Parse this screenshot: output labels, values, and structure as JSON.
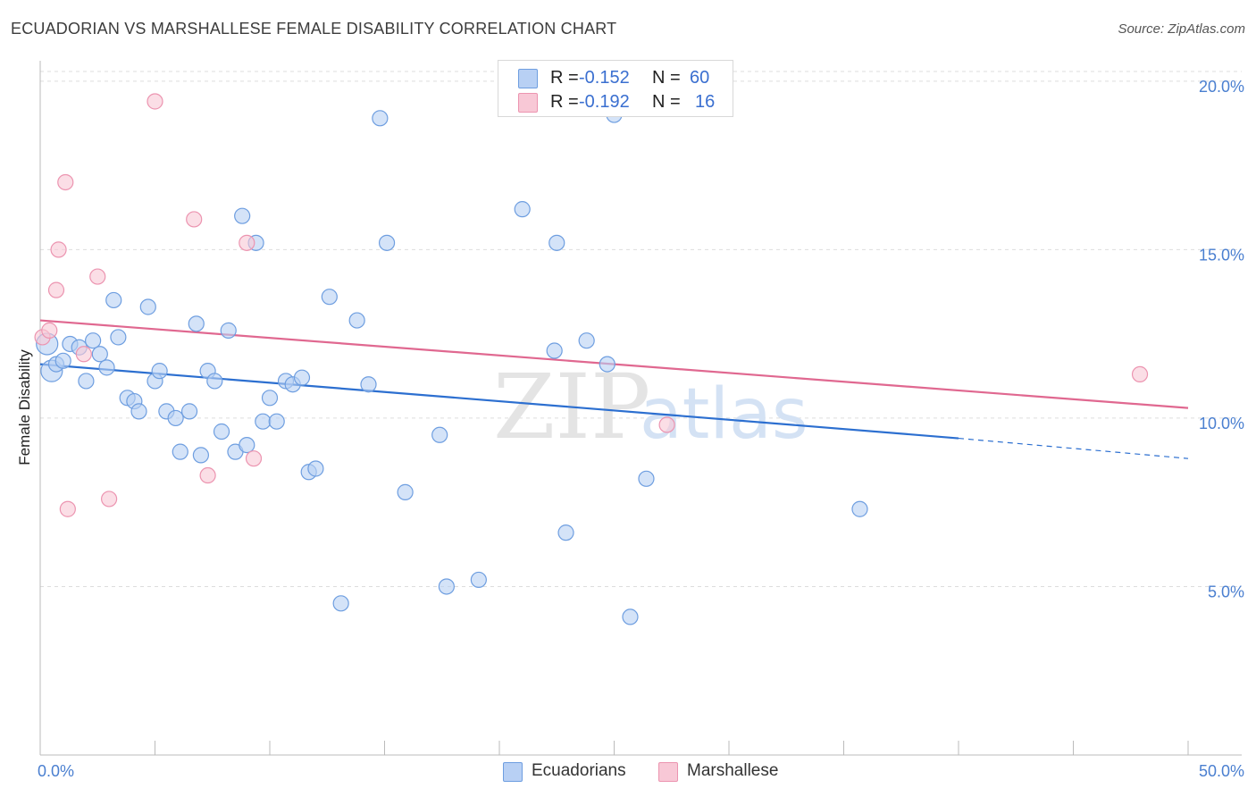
{
  "title": "ECUADORIAN VS MARSHALLESE FEMALE DISABILITY CORRELATION CHART",
  "source": "Source: ZipAtlas.com",
  "watermark": {
    "zip": "ZIP",
    "atlas": "atlas"
  },
  "colors": {
    "ecuadorian_fill": "#b8d0f4",
    "ecuadorian_stroke": "#6e9ee0",
    "ecuadorian_line": "#2c6fd0",
    "marshallese_fill": "#f8c8d6",
    "marshallese_stroke": "#ec94b0",
    "marshallese_line": "#e06890",
    "tick_text": "#4a7fd0",
    "grid": "#dddddd"
  },
  "legend": {
    "rows": [
      {
        "label": "R = ",
        "r": "-0.152",
        "n_label": "N = ",
        "n": "60"
      },
      {
        "label": "R = ",
        "r": "-0.192",
        "n_label": "N = ",
        "n": "16"
      }
    ]
  },
  "bottom_legend": [
    "Ecuadorians",
    "Marshallese"
  ],
  "chart_data": {
    "type": "scatter",
    "title": "ECUADORIAN VS MARSHALLESE FEMALE DISABILITY CORRELATION CHART",
    "xlabel": "",
    "ylabel": "Female Disability",
    "xlim": [
      0,
      50
    ],
    "ylim": [
      0,
      20.5
    ],
    "x_tick_labels": [
      {
        "value": 0,
        "label": "0.0%"
      },
      {
        "value": 50,
        "label": "50.0%"
      }
    ],
    "x_minor_ticks": [
      0,
      5,
      10,
      15,
      20,
      25,
      30,
      35,
      40,
      45,
      50
    ],
    "y_ticks": [
      {
        "value": 5,
        "label": "5.0%"
      },
      {
        "value": 10,
        "label": "10.0%"
      },
      {
        "value": 15,
        "label": "15.0%"
      },
      {
        "value": 20,
        "label": "20.0%"
      }
    ],
    "series": [
      {
        "name": "Ecuadorians",
        "points": [
          [
            0.3,
            12.2
          ],
          [
            0.5,
            11.4
          ],
          [
            0.7,
            11.6
          ],
          [
            1.0,
            11.7
          ],
          [
            1.3,
            12.2
          ],
          [
            1.7,
            12.1
          ],
          [
            2.0,
            11.1
          ],
          [
            2.3,
            12.3
          ],
          [
            2.6,
            11.9
          ],
          [
            2.9,
            11.5
          ],
          [
            3.2,
            13.5
          ],
          [
            3.4,
            12.4
          ],
          [
            3.8,
            10.6
          ],
          [
            4.1,
            10.5
          ],
          [
            4.3,
            10.2
          ],
          [
            4.7,
            13.3
          ],
          [
            5.0,
            11.1
          ],
          [
            5.2,
            11.4
          ],
          [
            5.5,
            10.2
          ],
          [
            5.9,
            10.0
          ],
          [
            6.1,
            9.0
          ],
          [
            6.5,
            10.2
          ],
          [
            6.8,
            12.8
          ],
          [
            7.0,
            8.9
          ],
          [
            7.3,
            11.4
          ],
          [
            7.6,
            11.1
          ],
          [
            7.9,
            9.6
          ],
          [
            8.2,
            12.6
          ],
          [
            8.5,
            9.0
          ],
          [
            8.8,
            16.0
          ],
          [
            9.0,
            9.2
          ],
          [
            9.4,
            15.2
          ],
          [
            9.7,
            9.9
          ],
          [
            10.0,
            10.6
          ],
          [
            10.3,
            9.9
          ],
          [
            10.7,
            11.1
          ],
          [
            11.0,
            11.0
          ],
          [
            11.4,
            11.2
          ],
          [
            11.7,
            8.4
          ],
          [
            12.0,
            8.5
          ],
          [
            12.6,
            13.6
          ],
          [
            13.1,
            4.5
          ],
          [
            13.8,
            12.9
          ],
          [
            14.3,
            11.0
          ],
          [
            14.8,
            18.9
          ],
          [
            15.1,
            15.2
          ],
          [
            15.9,
            7.8
          ],
          [
            17.4,
            9.5
          ],
          [
            17.7,
            5.0
          ],
          [
            19.1,
            5.2
          ],
          [
            21.0,
            16.2
          ],
          [
            22.4,
            12.0
          ],
          [
            22.5,
            15.2
          ],
          [
            22.9,
            6.6
          ],
          [
            23.8,
            12.3
          ],
          [
            24.7,
            11.6
          ],
          [
            25.0,
            19.0
          ],
          [
            25.7,
            4.1
          ],
          [
            26.4,
            8.2
          ],
          [
            35.7,
            7.3
          ]
        ]
      },
      {
        "name": "Marshallese",
        "points": [
          [
            0.1,
            12.4
          ],
          [
            0.4,
            12.6
          ],
          [
            0.7,
            13.8
          ],
          [
            0.8,
            15.0
          ],
          [
            1.1,
            17.0
          ],
          [
            1.2,
            7.3
          ],
          [
            1.9,
            11.9
          ],
          [
            2.5,
            14.2
          ],
          [
            3.0,
            7.6
          ],
          [
            5.0,
            19.4
          ],
          [
            6.7,
            15.9
          ],
          [
            7.3,
            8.3
          ],
          [
            9.0,
            15.2
          ],
          [
            9.3,
            8.8
          ],
          [
            27.3,
            9.8
          ],
          [
            47.9,
            11.3
          ]
        ]
      }
    ],
    "trend_lines": [
      {
        "series": "Ecuadorians",
        "x_start": 0,
        "y_start": 11.6,
        "x_end": 40,
        "y_end": 9.4,
        "dashed_to_x": 50,
        "dashed_to_y": 8.8
      },
      {
        "series": "Marshallese",
        "x_start": 0,
        "y_start": 12.9,
        "x_end": 50,
        "y_end": 10.3
      }
    ],
    "grid": true,
    "legend_position": "top-center"
  }
}
